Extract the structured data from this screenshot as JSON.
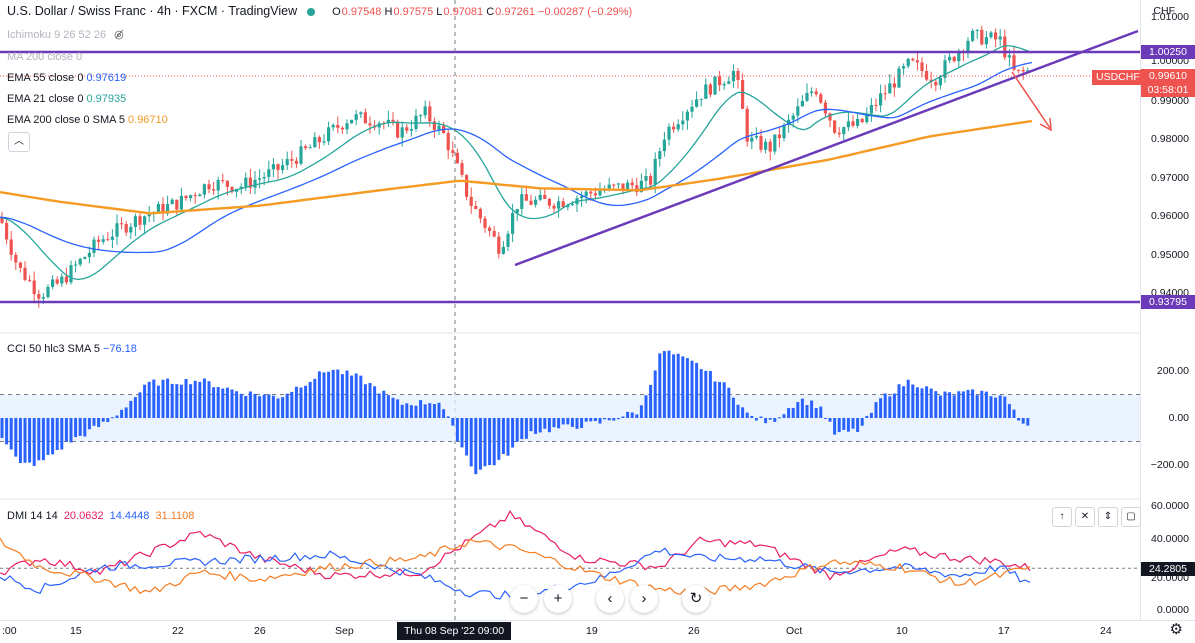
{
  "header": {
    "symbol_title": "U.S. Dollar / Swiss Franc · 4h · FXCM · TradingView",
    "open_label": "O",
    "open": "0.97548",
    "high_label": "H",
    "high": "0.97575",
    "low_label": "L",
    "low": "0.97081",
    "close_label": "C",
    "close": "0.97261",
    "change": "−0.00287 (−0.29%)"
  },
  "indicators": {
    "ichimoku": "Ichimoku 9 26 52 26",
    "ma200": "MA 200 close 0",
    "ema55": "EMA 55 close 0",
    "ema55_value": "0.97619",
    "ema21": "EMA 21 close 0",
    "ema21_value": "0.97935",
    "ema200": "EMA 200 close 0 SMA 5",
    "ema200_value": "0.96710",
    "cci": "CCI 50 hlc3 SMA 5",
    "cci_value": "−76.18",
    "dmi": "DMI 14 14",
    "dmi_plus": "20.0632",
    "dmi_minus": "14.4448",
    "dmi_adx": "31.1108"
  },
  "price_axis": {
    "currency": "CHF",
    "ticks": [
      "1.01000",
      "1.00000",
      "0.99000",
      "0.98000",
      "0.97000",
      "0.96000",
      "0.95000",
      "0.94000"
    ],
    "resistance_label": "1.00250",
    "support_label": "0.93795",
    "last_price": "0.99610",
    "countdown": "03:58:01",
    "symbol_tag": "USDCHF"
  },
  "cci_axis": {
    "ticks": [
      "200.00",
      "0.00",
      "−200.00"
    ]
  },
  "dmi_axis": {
    "ticks": [
      "60.0000",
      "40.0000",
      "20.0000",
      "0.0000"
    ],
    "current": "24.2805"
  },
  "time_axis": {
    "labels": [
      ":00",
      "15",
      "22",
      "26",
      "Sep",
      "19",
      "26",
      "Oct",
      "10",
      "17",
      "24"
    ],
    "crosshair": "Thu 08 Sep '22  09:00"
  },
  "nav": {
    "zoom_out": "−",
    "zoom_in": "+",
    "back": "‹",
    "forward": "›",
    "reset": "↻"
  },
  "pane_tools": {
    "up": "↑",
    "close": "✕",
    "collapse": "⇕",
    "maximize": "▢"
  },
  "settings": "⚙",
  "colors": {
    "up": "#26a69a",
    "down": "#ef5350",
    "ema21": "#26a69a",
    "ema55": "#2962ff",
    "ema200": "#f59a23",
    "trend": "#6a3ab8",
    "cci": "#2962ff",
    "dmi_plus": "#2962ff",
    "dmi_minus": "#f57c21",
    "adx": "#e91e63"
  }
}
